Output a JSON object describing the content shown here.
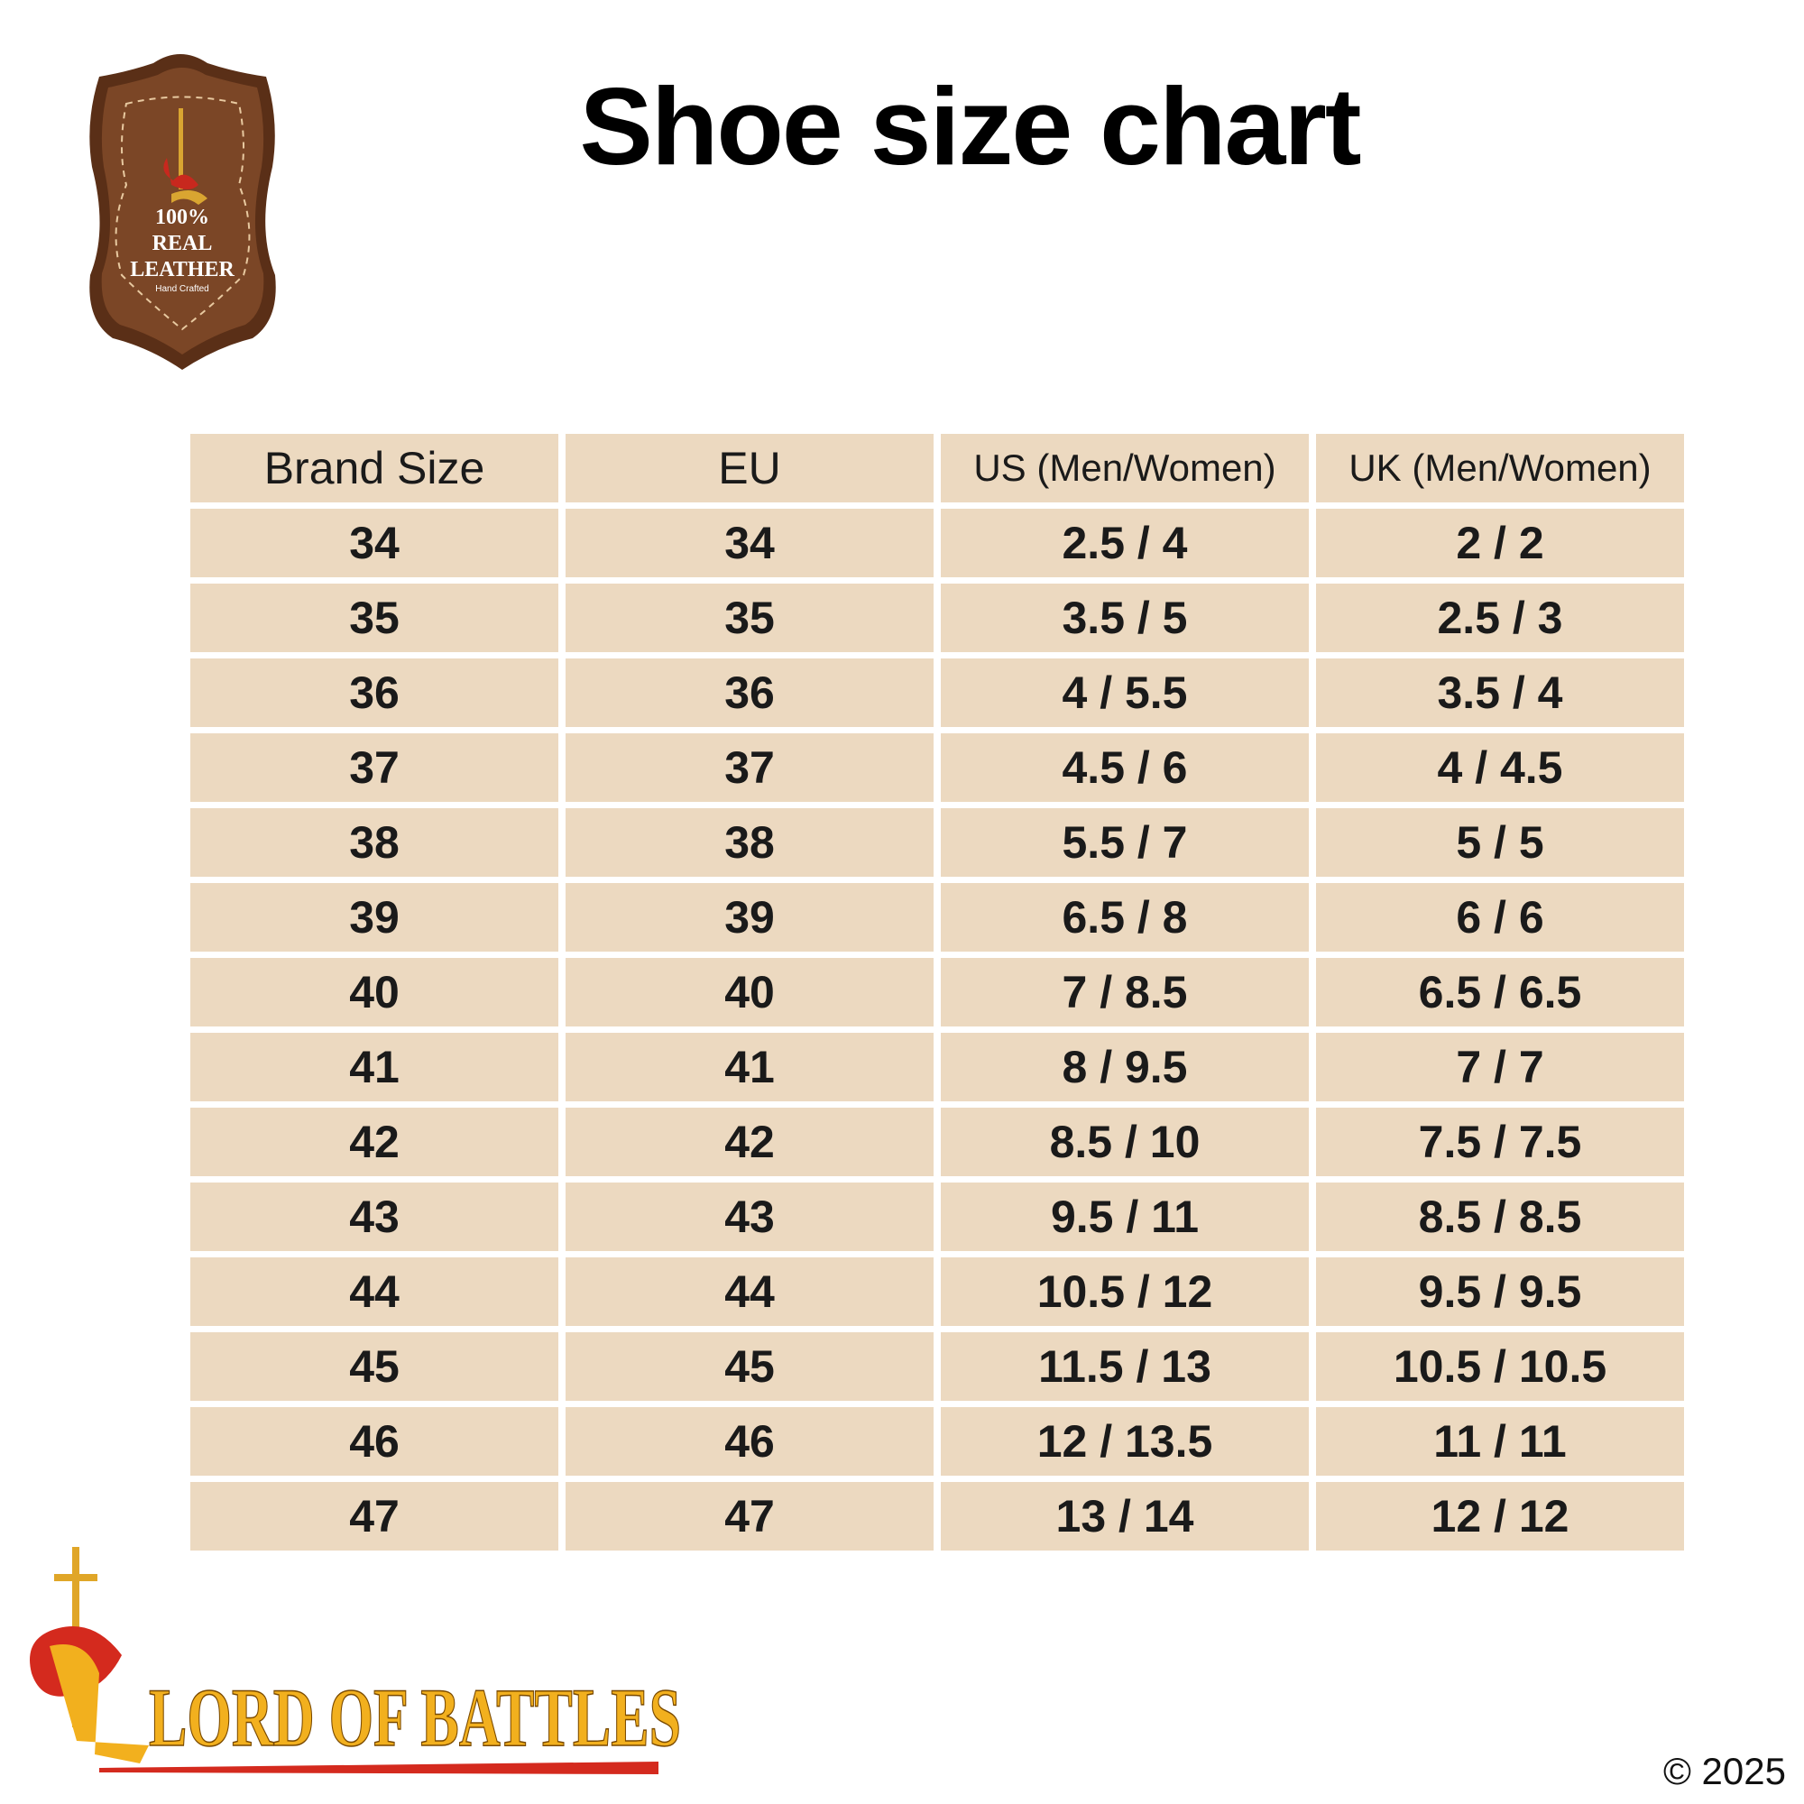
{
  "title": "Shoe size chart",
  "badge": {
    "line1": "100%",
    "line2": "REAL",
    "line3": "LEATHER",
    "line4": "Hand Crafted"
  },
  "table": {
    "headers": [
      "Brand Size",
      "EU",
      "US (Men/Women)",
      "UK (Men/Women)"
    ],
    "rows": [
      [
        "34",
        "34",
        "2.5 / 4",
        "2 / 2"
      ],
      [
        "35",
        "35",
        "3.5 / 5",
        "2.5 / 3"
      ],
      [
        "36",
        "36",
        "4 / 5.5",
        "3.5 / 4"
      ],
      [
        "37",
        "37",
        "4.5 / 6",
        "4 / 4.5"
      ],
      [
        "38",
        "38",
        "5.5 / 7",
        "5 / 5"
      ],
      [
        "39",
        "39",
        "6.5 / 8",
        "6 / 6"
      ],
      [
        "40",
        "40",
        "7 / 8.5",
        "6.5 / 6.5"
      ],
      [
        "41",
        "41",
        "8 / 9.5",
        "7 / 7"
      ],
      [
        "42",
        "42",
        "8.5 / 10",
        "7.5 / 7.5"
      ],
      [
        "43",
        "43",
        "9.5 / 11",
        "8.5 / 8.5"
      ],
      [
        "44",
        "44",
        "10.5 / 12",
        "9.5 / 9.5"
      ],
      [
        "45",
        "45",
        "11.5 / 13",
        "10.5 / 10.5"
      ],
      [
        "46",
        "46",
        "12 / 13.5",
        "11 / 11"
      ],
      [
        "47",
        "47",
        "13 / 14",
        "12 / 12"
      ]
    ]
  },
  "brand_logo": {
    "text": "LORD OF BATTLES"
  },
  "copyright": "© 2025",
  "colors": {
    "cell_bg": "#ecd9c0",
    "leather": "#7b4626",
    "leather_dark": "#5a2f17",
    "gold": "#f2b01e",
    "red": "#d42a1e"
  }
}
